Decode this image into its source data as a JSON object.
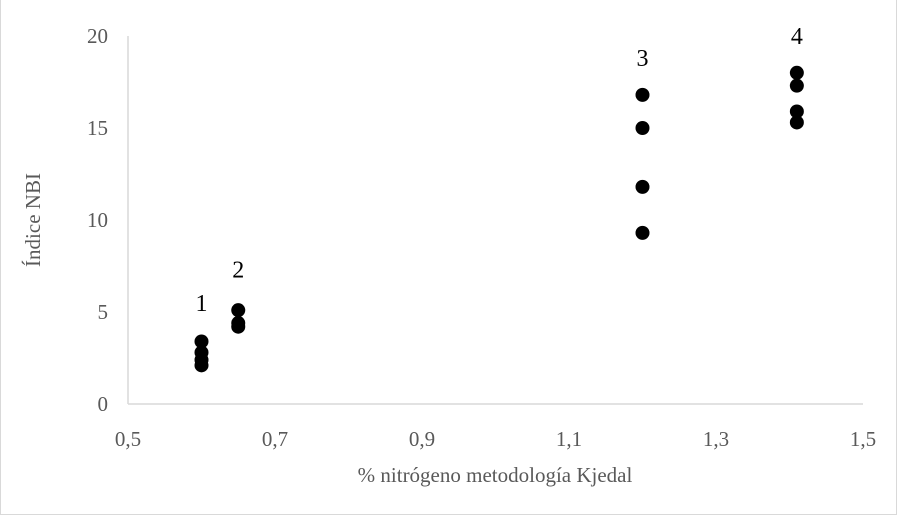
{
  "chart_data": {
    "type": "scatter",
    "title": "",
    "xlabel": "% nitrógeno metodología Kjedal",
    "ylabel": "Índice NBI",
    "xlim": [
      0.5,
      1.5
    ],
    "ylim": [
      0,
      20
    ],
    "x_ticks": [
      "0,5",
      "0,7",
      "0,9",
      "1,1",
      "1,3",
      "1,5"
    ],
    "y_ticks": [
      "0",
      "5",
      "10",
      "15",
      "20"
    ],
    "grid": false,
    "legend": "none",
    "marker_color": "#000000",
    "points": [
      {
        "x": 0.6,
        "y": 3.4
      },
      {
        "x": 0.6,
        "y": 2.8
      },
      {
        "x": 0.6,
        "y": 2.4
      },
      {
        "x": 0.6,
        "y": 2.1
      },
      {
        "x": 0.65,
        "y": 5.1
      },
      {
        "x": 0.65,
        "y": 4.4
      },
      {
        "x": 0.65,
        "y": 4.2
      },
      {
        "x": 1.2,
        "y": 16.8
      },
      {
        "x": 1.2,
        "y": 15.0
      },
      {
        "x": 1.2,
        "y": 11.8
      },
      {
        "x": 1.2,
        "y": 9.3
      },
      {
        "x": 1.41,
        "y": 18.0
      },
      {
        "x": 1.41,
        "y": 17.3
      },
      {
        "x": 1.41,
        "y": 15.9
      },
      {
        "x": 1.41,
        "y": 15.3
      }
    ],
    "annotations": [
      {
        "text": "1",
        "x": 0.6,
        "y": 5.5
      },
      {
        "text": "2",
        "x": 0.65,
        "y": 7.3
      },
      {
        "text": "3",
        "x": 1.2,
        "y": 18.8
      },
      {
        "text": "4",
        "x": 1.41,
        "y": 20.0
      }
    ]
  }
}
